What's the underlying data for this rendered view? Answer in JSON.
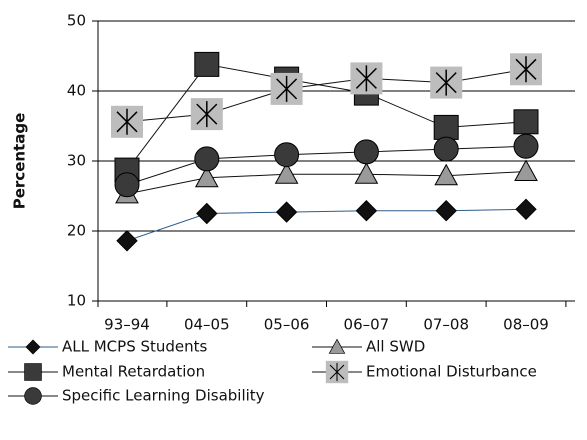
{
  "chart_data": {
    "type": "line",
    "y_label": "Percentage",
    "categories": [
      "93–94",
      "04–05",
      "05–06",
      "06–07",
      "07–08",
      "08–09"
    ],
    "ylim": [
      10,
      50
    ],
    "yticks": [
      10,
      20,
      30,
      40,
      50
    ],
    "grid": true,
    "series": [
      {
        "name": "ALL MCPS Students",
        "marker": "diamond",
        "color": "#111111",
        "line_color": "#2e5c8a",
        "values": [
          18.6,
          22.5,
          22.7,
          22.9,
          22.9,
          23.1
        ]
      },
      {
        "name": "All SWD",
        "marker": "triangle",
        "color": "#9a9a9a",
        "line_color": "#111111",
        "values": [
          25.3,
          27.6,
          28.1,
          28.1,
          27.9,
          28.5
        ]
      },
      {
        "name": "Mental Retardation",
        "marker": "square",
        "color": "#3a3a3a",
        "line_color": "#111111",
        "values": [
          28.7,
          43.8,
          41.7,
          39.7,
          34.8,
          35.6
        ]
      },
      {
        "name": "Emotional Disturbance",
        "marker": "star-square",
        "color": "#bdbdbd",
        "line_color": "#111111",
        "values": [
          35.6,
          36.7,
          40.3,
          41.8,
          41.2,
          43.1
        ]
      },
      {
        "name": "Specific Learning Disability",
        "marker": "circle",
        "color": "#3a3a3a",
        "line_color": "#111111",
        "values": [
          26.6,
          30.3,
          30.9,
          31.3,
          31.7,
          32.1
        ]
      }
    ]
  }
}
